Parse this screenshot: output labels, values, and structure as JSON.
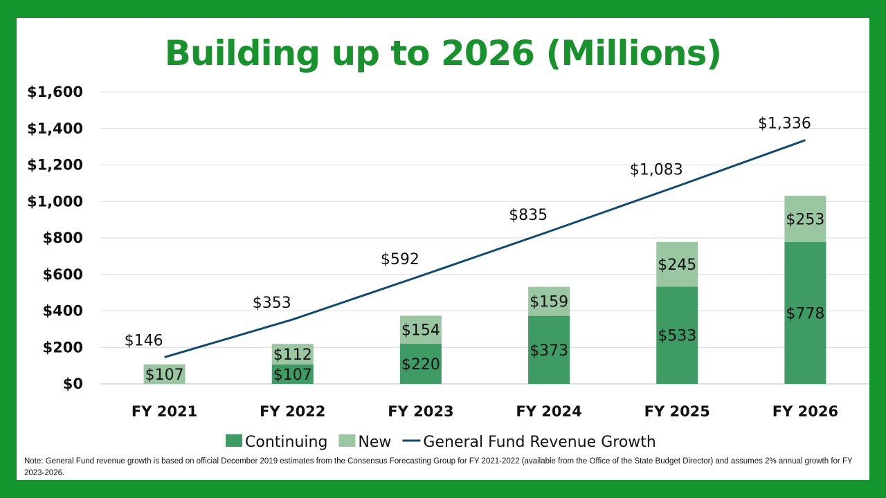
{
  "colors": {
    "background": "#14952d",
    "title": "#17922c",
    "continuing": "#3e9b64",
    "new": "#9ac7a1",
    "line": "#0e4a73"
  },
  "chart_data": {
    "type": "bar",
    "title": "Building up to 2026 (Millions)",
    "categories": [
      "FY 2021",
      "FY 2022",
      "FY 2023",
      "FY 2024",
      "FY 2025",
      "FY 2026"
    ],
    "yticks": [
      "$0",
      "$200",
      "$400",
      "$600",
      "$800",
      "$1,000",
      "$1,200",
      "$1,400",
      "$1,600"
    ],
    "ylim": [
      0,
      1600
    ],
    "stacked": true,
    "grid": true,
    "legend": "bottom",
    "series": [
      {
        "name": "Continuing",
        "type": "bar",
        "color": "#3e9b64",
        "values": [
          0,
          107,
          220,
          373,
          533,
          778
        ],
        "labels": [
          "",
          "$107",
          "$220",
          "$373",
          "$533",
          "$778"
        ]
      },
      {
        "name": "New",
        "type": "bar",
        "color": "#9ac7a1",
        "values": [
          107,
          112,
          154,
          159,
          245,
          253
        ],
        "labels": [
          "$107",
          "$112",
          "$154",
          "$159",
          "$245",
          "$253"
        ]
      },
      {
        "name": "General Fund Revenue Growth",
        "type": "line",
        "color": "#0e4a73",
        "values": [
          146,
          353,
          592,
          835,
          1083,
          1336
        ],
        "labels": [
          "$146",
          "$353",
          "$592",
          "$835",
          "$1,083",
          "$1,336"
        ]
      }
    ]
  },
  "note": "Note: General Fund revenue growth is based on official December 2019 estimates from the Consensus Forecasting Group for FY 2021-2022 (available from the Office of the State Budget Director) and assumes 2% annual growth for FY 2023-2026."
}
